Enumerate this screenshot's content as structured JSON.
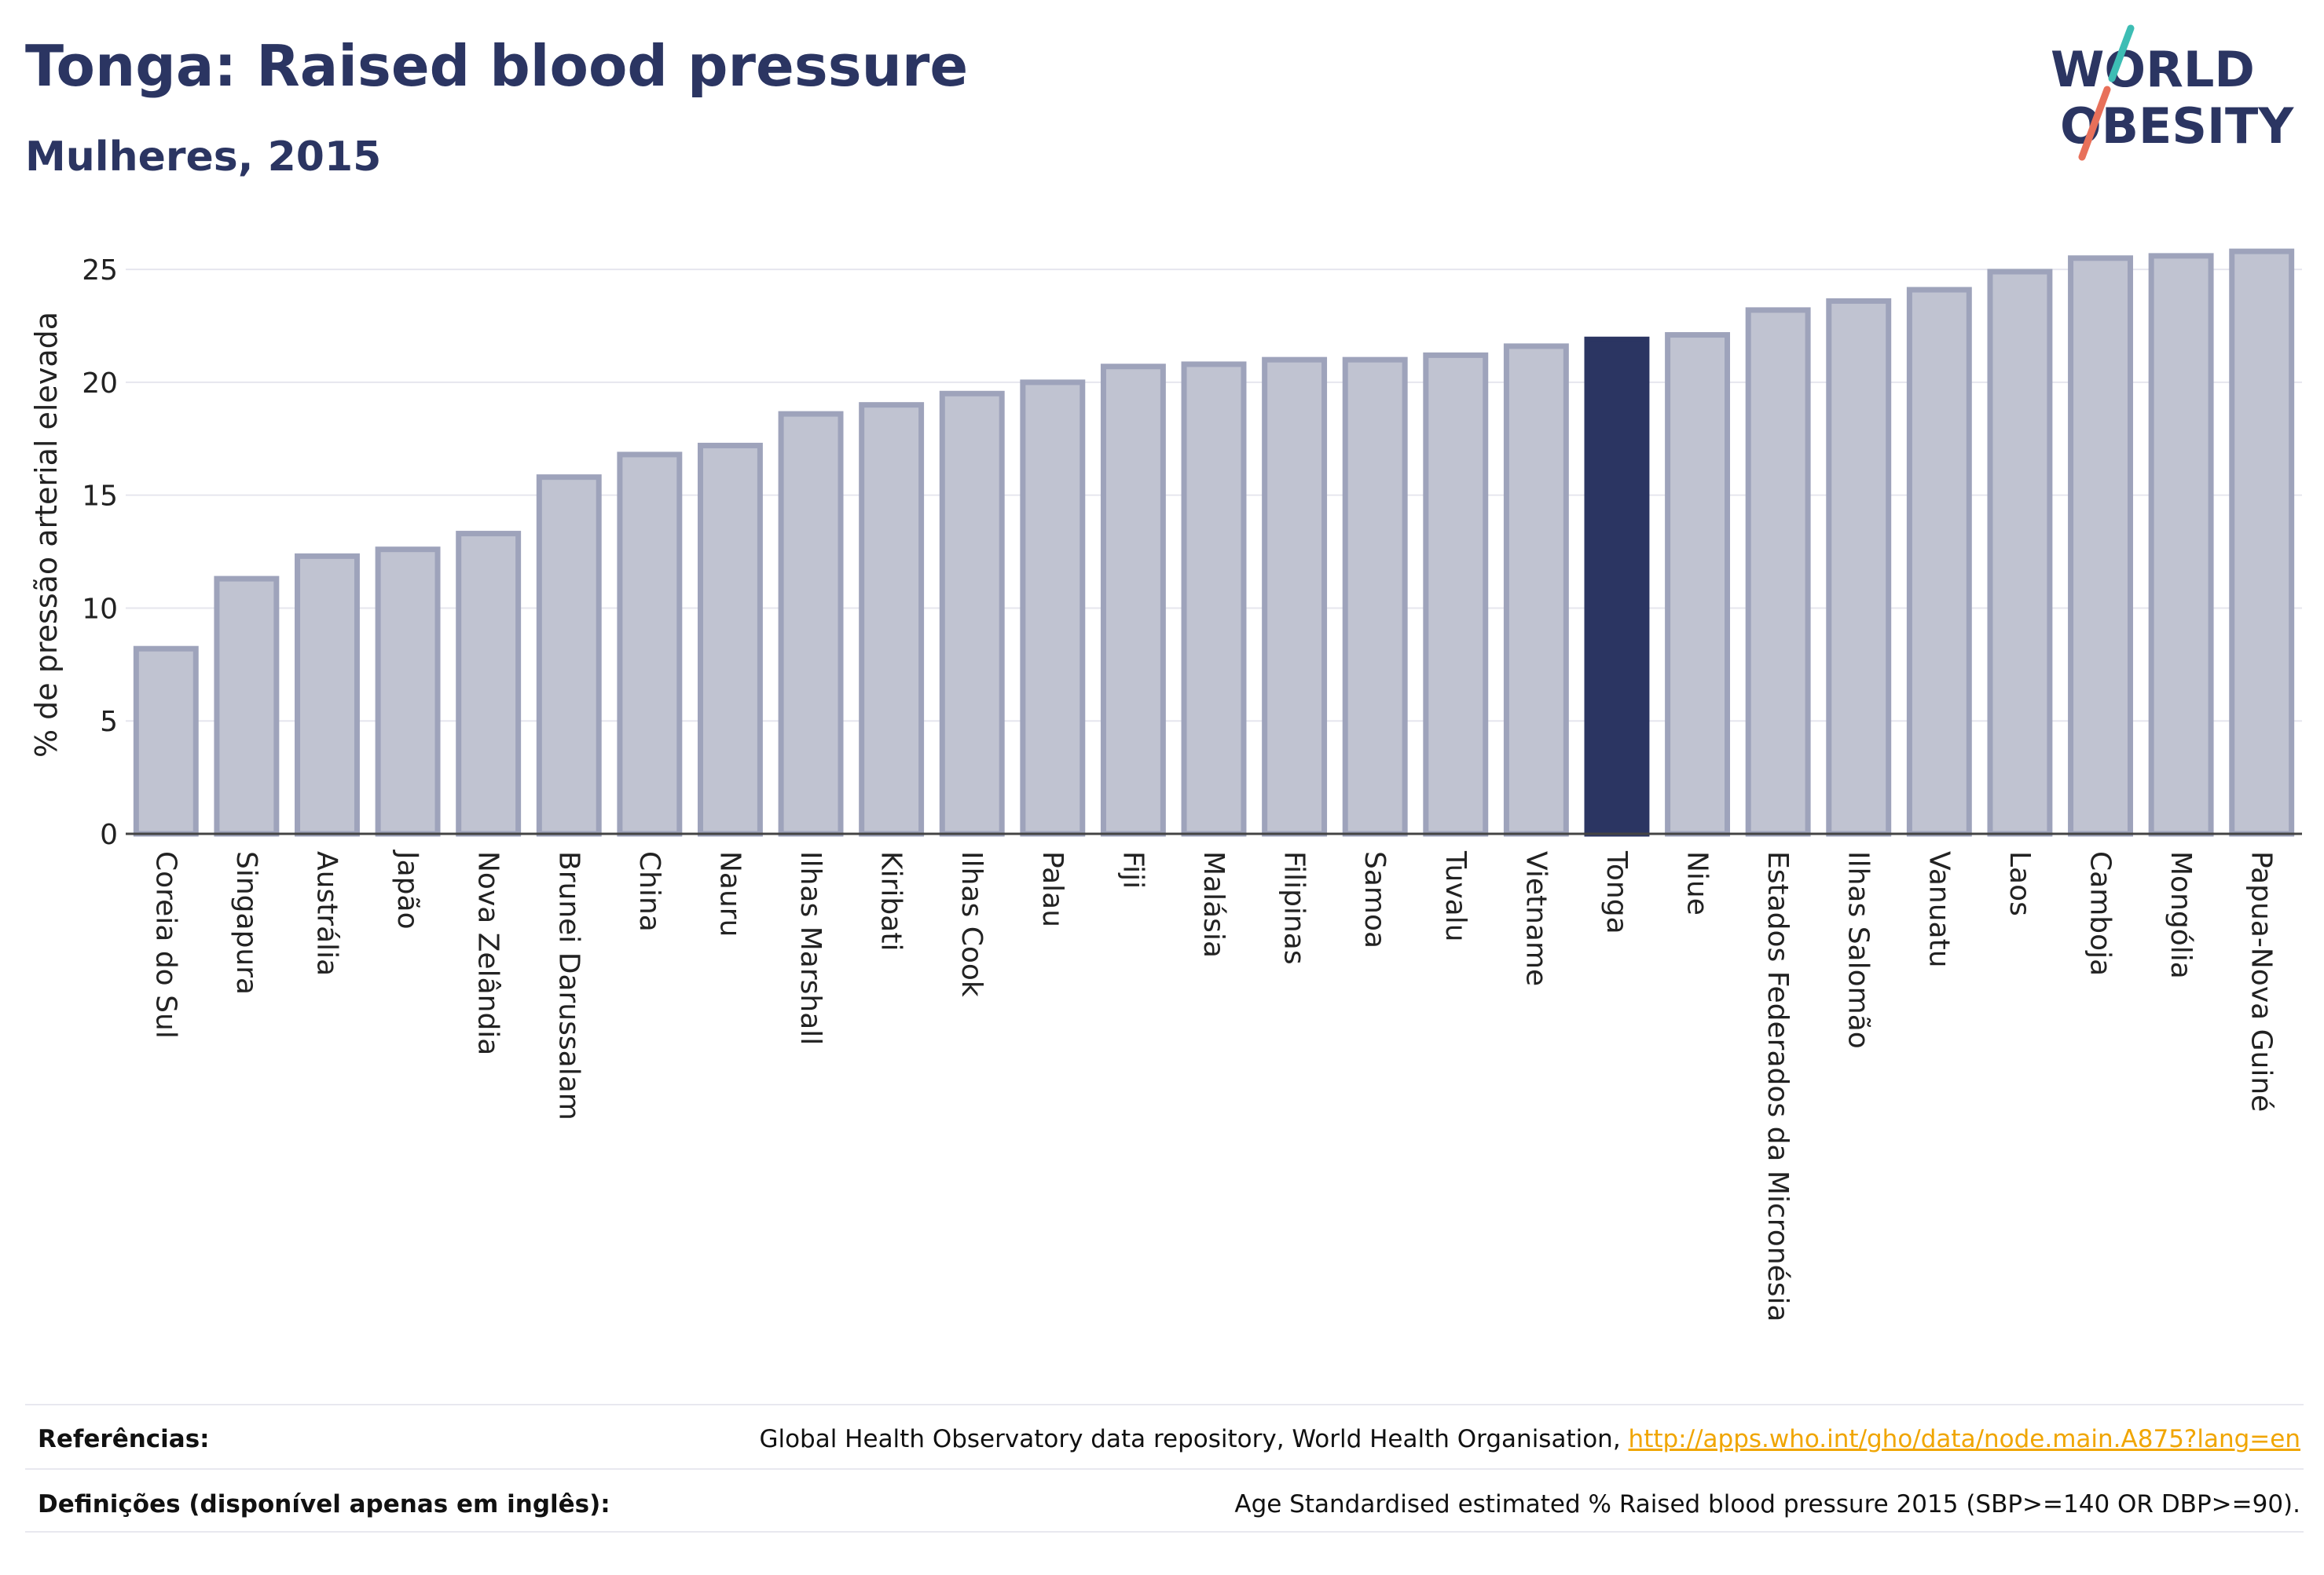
{
  "title": "Tonga: Raised blood pressure",
  "subtitle": "Mulheres, 2015",
  "logo": {
    "line1": "WORLD",
    "line2": "OBESITY",
    "icon": "world-obesity-logo"
  },
  "colors": {
    "highlight": "#2b3562",
    "bar": "#c0c3d1",
    "bar_border": "#9ea3bb",
    "grid": "#e6e6ee"
  },
  "chart_data": {
    "type": "bar",
    "ylabel": "% de pressão arterial elevada",
    "ylim": [
      0,
      26.5
    ],
    "yticks": [
      0,
      5,
      10,
      15,
      20,
      25
    ],
    "highlight": "Tonga",
    "grid": true,
    "categories": [
      "Coreia do Sul",
      "Singapura",
      "Austrália",
      "Japão",
      "Nova Zelândia",
      "Brunei Darussalam",
      "China",
      "Nauru",
      "Ilhas Marshall",
      "Kiribati",
      "Ilhas Cook",
      "Palau",
      "Fiji",
      "Malásia",
      "Filipinas",
      "Samoa",
      "Tuvalu",
      "Vietname",
      "Tonga",
      "Niue",
      "Estados Federados da Micronésia",
      "Ilhas Salomão",
      "Vanuatu",
      "Laos",
      "Camboja",
      "Mongólia",
      "Papua-Nova Guiné"
    ],
    "values": [
      8.2,
      11.3,
      12.3,
      12.6,
      13.3,
      15.8,
      16.8,
      17.2,
      18.6,
      19.0,
      19.5,
      20.0,
      20.7,
      20.8,
      21.0,
      21.0,
      21.2,
      21.6,
      21.9,
      22.1,
      23.2,
      23.6,
      24.1,
      24.9,
      25.5,
      25.6,
      25.8
    ]
  },
  "footer": {
    "references_label": "Referências:",
    "references_text": "Global Health Observatory data repository, World Health Organisation,",
    "references_link": "http://apps.who.int/gho/data/node.main.A875?lang=en",
    "definitions_label": "Definições (disponível apenas em inglês):",
    "definitions_text": "Age Standardised estimated % Raised blood pressure 2015 (SBP>=140 OR DBP>=90)."
  }
}
